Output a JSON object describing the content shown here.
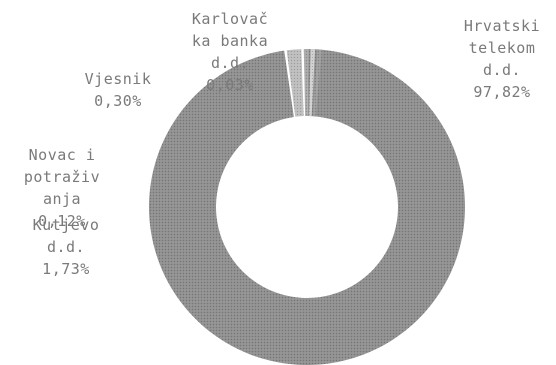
{
  "chart_data": {
    "type": "pie",
    "style": "donut",
    "title": "",
    "start_angle_deg": 0,
    "direction": "clockwise",
    "slices": [
      {
        "label": [
          "Hrvatski",
          "telekom",
          "d.d."
        ],
        "value_text": "97,82%",
        "value": 97.82,
        "color": "#8f8f8f"
      },
      {
        "label": [
          "Kutjevo",
          "d.d."
        ],
        "value_text": "1,73%",
        "value": 1.73,
        "color": "#bdbdbd"
      },
      {
        "label": [
          "Novac i",
          "potraživ",
          "anja"
        ],
        "value_text": "0,12%",
        "value": 0.12,
        "color": "#a9a9a9"
      },
      {
        "label": [
          "Vjesnik"
        ],
        "value_text": "0,30%",
        "value": 0.3,
        "color": "#d0d0d0"
      },
      {
        "label": [
          "Karlovač",
          "ka banka",
          "d.d."
        ],
        "value_text": "0,03%",
        "value": 0.03,
        "color": "#9d9d9d"
      }
    ]
  }
}
